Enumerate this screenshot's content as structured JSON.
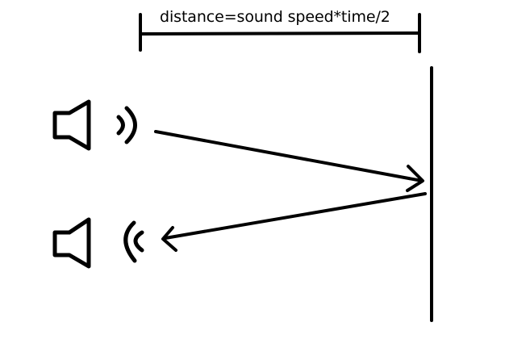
{
  "diagram": {
    "formula_label": "distance=sound speed*time/2",
    "icons": {
      "emitter": "speaker-icon",
      "receiver": "speaker-icon",
      "emitted_wave": "sound-waves-outgoing-icon",
      "received_wave": "sound-waves-incoming-icon"
    },
    "ink_color": "#000000"
  }
}
